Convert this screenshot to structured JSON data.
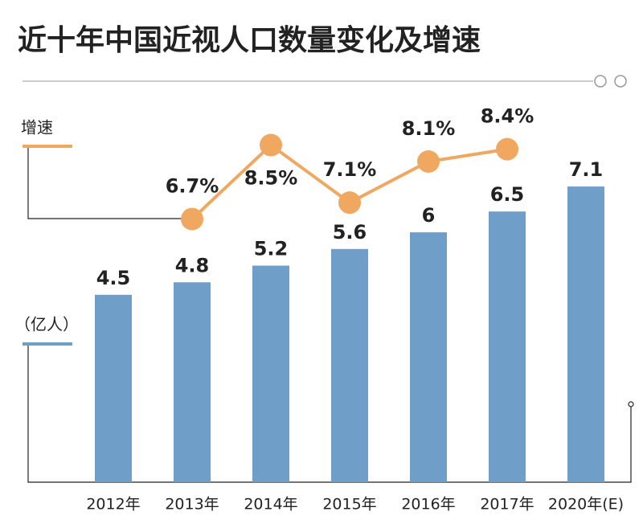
{
  "chart_data": {
    "type": "bar",
    "title": "近十年中国近视人口数量变化及增速",
    "categories": [
      "2012年",
      "2013年",
      "2014年",
      "2015年",
      "2016年",
      "2017年",
      "2020年(E)"
    ],
    "series": [
      {
        "name": "（亿人）",
        "type": "bar",
        "color": "#6f9ec8",
        "values": [
          4.5,
          4.8,
          5.2,
          5.6,
          6,
          6.5,
          7.1
        ]
      },
      {
        "name": "增速",
        "type": "line",
        "axis": "y2",
        "color": "#f0a860",
        "values": [
          null,
          6.7,
          8.5,
          7.1,
          8.1,
          8.4,
          null
        ],
        "value_labels": [
          null,
          "6.7%",
          "8.5%",
          "7.1%",
          "8.1%",
          "8.4%",
          null
        ]
      }
    ],
    "ylim": [
      0,
      7.7
    ],
    "y2lim": [
      0.3,
      8.1
    ]
  }
}
